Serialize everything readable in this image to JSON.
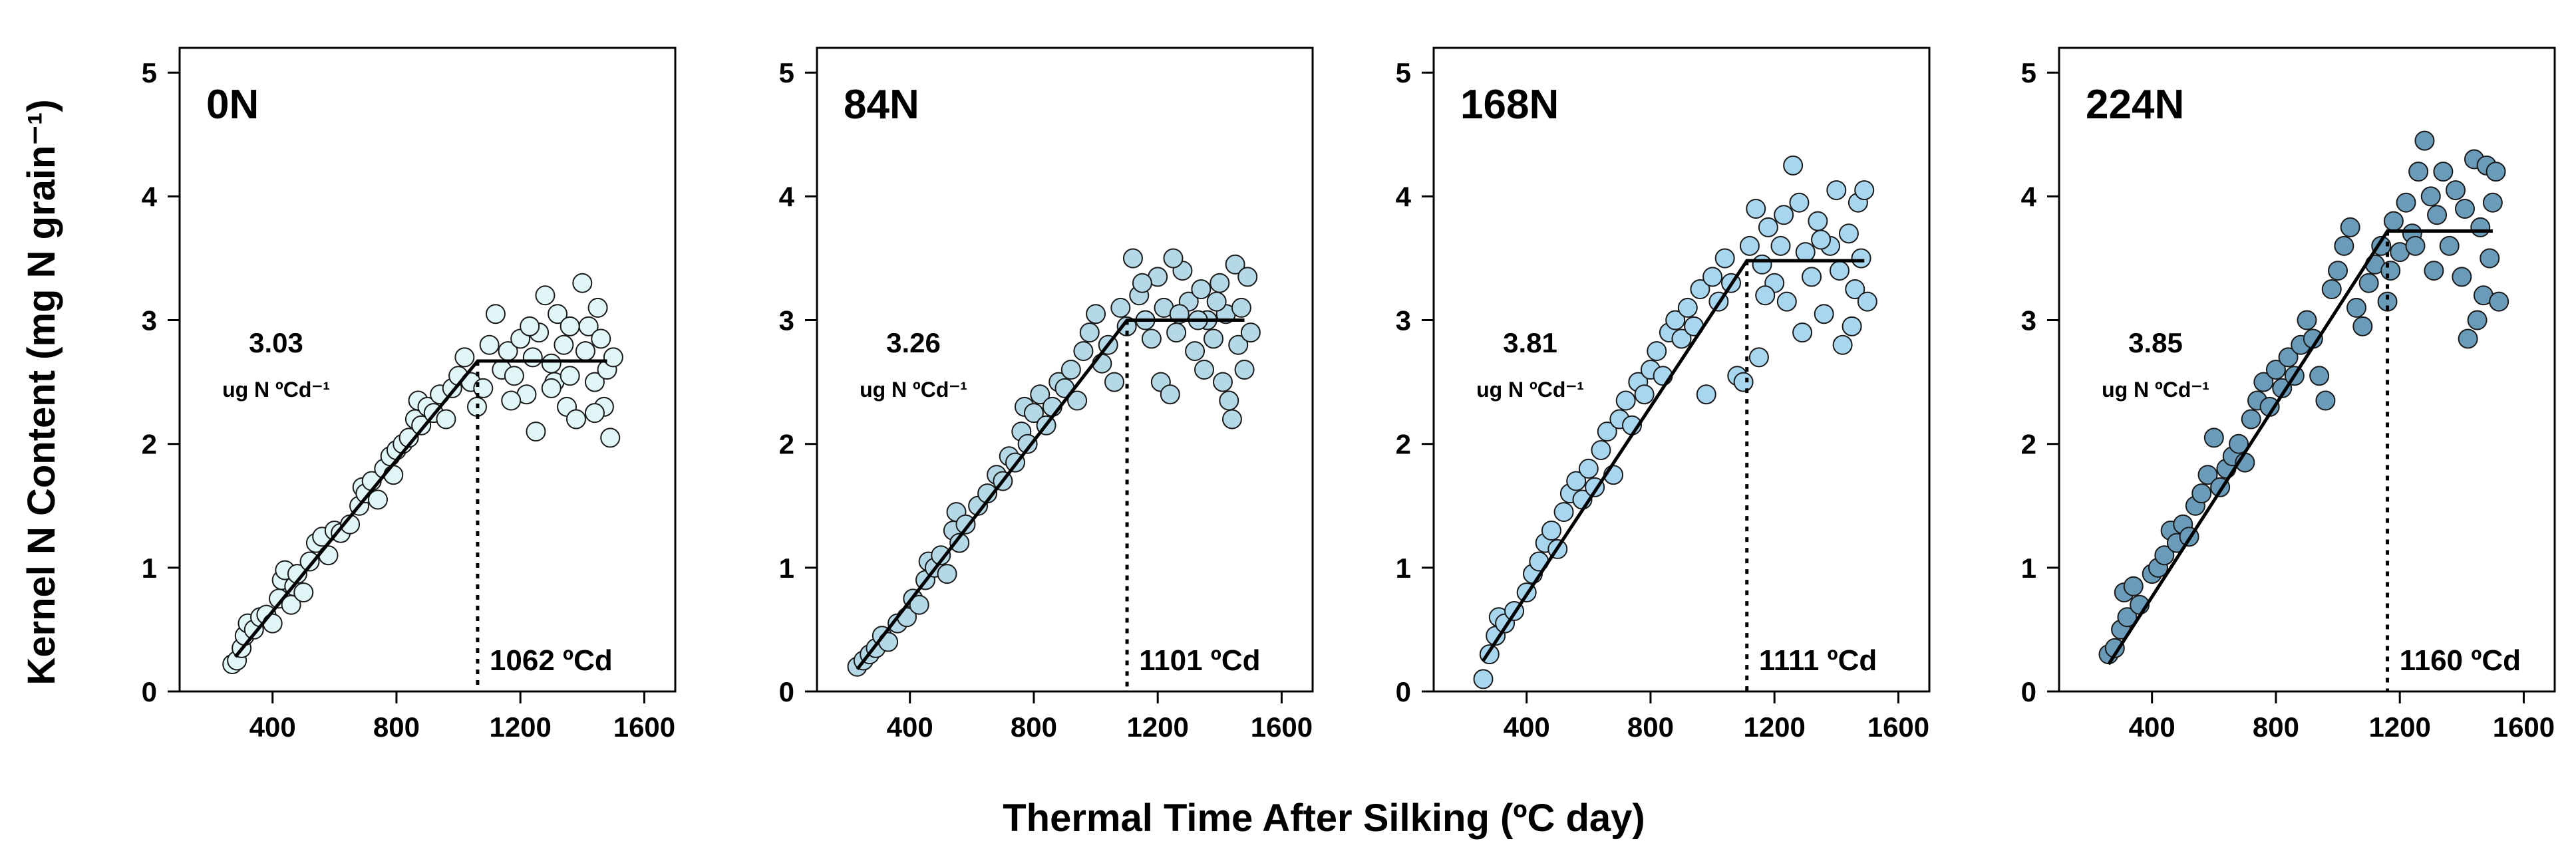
{
  "chart_data": {
    "type": "scatter",
    "xlabel": "Thermal Time After Silking (ºC day)",
    "ylabel": "Kernel N Content (mg N grain⁻¹)",
    "xlim": [
      100,
      1700
    ],
    "ylim": [
      0,
      5.2
    ],
    "xticks": [
      "400",
      "800",
      "1200",
      "1600"
    ],
    "yticks": [
      "0",
      "1",
      "2",
      "3",
      "4",
      "5"
    ],
    "panels": [
      {
        "title": "0N",
        "slope_value": "3.03",
        "slope_unit": "ug N ºCd⁻¹",
        "breakpoint_label": "1062 ºCd",
        "breakpoint": 1062,
        "fit": {
          "x0": 280,
          "y0": 0.28,
          "plateau": 2.67,
          "x_end": 1480
        },
        "point_color": "#e0f6f7",
        "points": [
          [
            270,
            0.22
          ],
          [
            285,
            0.25
          ],
          [
            300,
            0.35
          ],
          [
            310,
            0.45
          ],
          [
            320,
            0.55
          ],
          [
            340,
            0.5
          ],
          [
            360,
            0.6
          ],
          [
            380,
            0.62
          ],
          [
            400,
            0.55
          ],
          [
            420,
            0.75
          ],
          [
            430,
            0.9
          ],
          [
            440,
            0.98
          ],
          [
            460,
            0.7
          ],
          [
            470,
            0.85
          ],
          [
            480,
            0.95
          ],
          [
            500,
            0.8
          ],
          [
            520,
            1.05
          ],
          [
            540,
            1.2
          ],
          [
            560,
            1.25
          ],
          [
            580,
            1.1
          ],
          [
            600,
            1.3
          ],
          [
            620,
            1.28
          ],
          [
            650,
            1.35
          ],
          [
            680,
            1.5
          ],
          [
            690,
            1.65
          ],
          [
            700,
            1.6
          ],
          [
            720,
            1.7
          ],
          [
            740,
            1.55
          ],
          [
            760,
            1.8
          ],
          [
            780,
            1.9
          ],
          [
            790,
            1.75
          ],
          [
            800,
            1.95
          ],
          [
            820,
            2.0
          ],
          [
            840,
            2.05
          ],
          [
            860,
            2.2
          ],
          [
            870,
            2.35
          ],
          [
            880,
            2.15
          ],
          [
            900,
            2.3
          ],
          [
            920,
            2.25
          ],
          [
            940,
            2.4
          ],
          [
            960,
            2.2
          ],
          [
            980,
            2.45
          ],
          [
            1000,
            2.55
          ],
          [
            1020,
            2.7
          ],
          [
            1040,
            2.5
          ],
          [
            1060,
            2.3
          ],
          [
            1080,
            2.45
          ],
          [
            1100,
            2.8
          ],
          [
            1120,
            3.05
          ],
          [
            1140,
            2.6
          ],
          [
            1160,
            2.75
          ],
          [
            1180,
            2.55
          ],
          [
            1200,
            2.85
          ],
          [
            1220,
            2.4
          ],
          [
            1240,
            2.7
          ],
          [
            1250,
            2.1
          ],
          [
            1260,
            2.9
          ],
          [
            1280,
            3.2
          ],
          [
            1300,
            2.65
          ],
          [
            1310,
            2.5
          ],
          [
            1320,
            3.05
          ],
          [
            1340,
            2.8
          ],
          [
            1350,
            2.3
          ],
          [
            1360,
            2.55
          ],
          [
            1380,
            2.2
          ],
          [
            1400,
            3.3
          ],
          [
            1410,
            2.75
          ],
          [
            1420,
            2.95
          ],
          [
            1440,
            2.5
          ],
          [
            1450,
            3.1
          ],
          [
            1460,
            2.85
          ],
          [
            1470,
            2.3
          ],
          [
            1480,
            2.6
          ],
          [
            1490,
            2.05
          ],
          [
            1500,
            2.7
          ],
          [
            1300,
            2.45
          ],
          [
            1230,
            2.95
          ],
          [
            1170,
            2.35
          ],
          [
            1440,
            2.25
          ],
          [
            1360,
            2.95
          ]
        ]
      },
      {
        "title": "84N",
        "slope_value": "3.26",
        "slope_unit": "ug N ºCd⁻¹",
        "breakpoint_label": "1101 ºCd",
        "breakpoint": 1101,
        "fit": {
          "x0": 230,
          "y0": 0.18,
          "plateau": 3.0,
          "x_end": 1480
        },
        "point_color": "#b5d8e6",
        "points": [
          [
            230,
            0.2
          ],
          [
            250,
            0.25
          ],
          [
            270,
            0.3
          ],
          [
            290,
            0.35
          ],
          [
            310,
            0.45
          ],
          [
            330,
            0.4
          ],
          [
            360,
            0.55
          ],
          [
            390,
            0.6
          ],
          [
            410,
            0.75
          ],
          [
            430,
            0.7
          ],
          [
            450,
            0.9
          ],
          [
            460,
            1.05
          ],
          [
            480,
            1.0
          ],
          [
            500,
            1.1
          ],
          [
            520,
            0.95
          ],
          [
            540,
            1.3
          ],
          [
            550,
            1.45
          ],
          [
            560,
            1.2
          ],
          [
            580,
            1.35
          ],
          [
            620,
            1.5
          ],
          [
            650,
            1.6
          ],
          [
            680,
            1.75
          ],
          [
            700,
            1.7
          ],
          [
            720,
            1.9
          ],
          [
            740,
            1.85
          ],
          [
            760,
            2.1
          ],
          [
            770,
            2.3
          ],
          [
            780,
            2.0
          ],
          [
            800,
            2.25
          ],
          [
            820,
            2.4
          ],
          [
            840,
            2.15
          ],
          [
            860,
            2.3
          ],
          [
            880,
            2.5
          ],
          [
            900,
            2.45
          ],
          [
            920,
            2.6
          ],
          [
            940,
            2.35
          ],
          [
            960,
            2.75
          ],
          [
            980,
            2.9
          ],
          [
            1000,
            3.05
          ],
          [
            1020,
            2.65
          ],
          [
            1040,
            2.8
          ],
          [
            1060,
            2.5
          ],
          [
            1080,
            3.1
          ],
          [
            1100,
            2.95
          ],
          [
            1120,
            3.5
          ],
          [
            1140,
            3.2
          ],
          [
            1160,
            3.0
          ],
          [
            1180,
            2.85
          ],
          [
            1200,
            3.35
          ],
          [
            1210,
            2.5
          ],
          [
            1220,
            3.1
          ],
          [
            1240,
            2.4
          ],
          [
            1260,
            2.9
          ],
          [
            1280,
            3.4
          ],
          [
            1300,
            3.15
          ],
          [
            1320,
            2.75
          ],
          [
            1340,
            3.25
          ],
          [
            1350,
            2.6
          ],
          [
            1360,
            3.0
          ],
          [
            1380,
            2.85
          ],
          [
            1400,
            3.3
          ],
          [
            1410,
            2.5
          ],
          [
            1420,
            3.05
          ],
          [
            1440,
            2.2
          ],
          [
            1450,
            3.45
          ],
          [
            1460,
            2.8
          ],
          [
            1470,
            3.1
          ],
          [
            1480,
            2.6
          ],
          [
            1490,
            3.35
          ],
          [
            1500,
            2.9
          ],
          [
            1250,
            3.5
          ],
          [
            1150,
            3.3
          ],
          [
            1330,
            3.0
          ],
          [
            1430,
            2.35
          ],
          [
            1390,
            3.15
          ],
          [
            1270,
            3.05
          ]
        ]
      },
      {
        "title": "168N",
        "slope_value": "3.81",
        "slope_unit": "ug N ºCd⁻¹",
        "breakpoint_label": "1111 ºCd",
        "breakpoint": 1111,
        "fit": {
          "x0": 260,
          "y0": 0.25,
          "plateau": 3.48,
          "x_end": 1490
        },
        "point_color": "#a9d6ef",
        "points": [
          [
            260,
            0.1
          ],
          [
            280,
            0.3
          ],
          [
            300,
            0.45
          ],
          [
            310,
            0.6
          ],
          [
            330,
            0.55
          ],
          [
            360,
            0.65
          ],
          [
            400,
            0.8
          ],
          [
            420,
            0.95
          ],
          [
            440,
            1.05
          ],
          [
            460,
            1.2
          ],
          [
            480,
            1.3
          ],
          [
            500,
            1.15
          ],
          [
            520,
            1.45
          ],
          [
            540,
            1.6
          ],
          [
            560,
            1.7
          ],
          [
            580,
            1.55
          ],
          [
            600,
            1.8
          ],
          [
            620,
            1.65
          ],
          [
            640,
            1.95
          ],
          [
            660,
            2.1
          ],
          [
            680,
            1.75
          ],
          [
            700,
            2.2
          ],
          [
            720,
            2.35
          ],
          [
            740,
            2.15
          ],
          [
            760,
            2.5
          ],
          [
            780,
            2.4
          ],
          [
            800,
            2.6
          ],
          [
            820,
            2.75
          ],
          [
            840,
            2.55
          ],
          [
            860,
            2.9
          ],
          [
            880,
            3.0
          ],
          [
            900,
            2.85
          ],
          [
            920,
            3.1
          ],
          [
            940,
            2.95
          ],
          [
            960,
            3.25
          ],
          [
            980,
            2.4
          ],
          [
            1000,
            3.35
          ],
          [
            1020,
            3.15
          ],
          [
            1040,
            3.5
          ],
          [
            1060,
            3.3
          ],
          [
            1080,
            2.55
          ],
          [
            1100,
            2.5
          ],
          [
            1120,
            3.6
          ],
          [
            1140,
            3.9
          ],
          [
            1160,
            3.45
          ],
          [
            1180,
            3.75
          ],
          [
            1200,
            3.3
          ],
          [
            1220,
            3.6
          ],
          [
            1240,
            3.15
          ],
          [
            1260,
            4.25
          ],
          [
            1280,
            3.95
          ],
          [
            1300,
            3.55
          ],
          [
            1320,
            3.35
          ],
          [
            1340,
            3.8
          ],
          [
            1360,
            3.05
          ],
          [
            1380,
            3.6
          ],
          [
            1400,
            4.05
          ],
          [
            1420,
            2.8
          ],
          [
            1440,
            3.7
          ],
          [
            1460,
            3.25
          ],
          [
            1470,
            3.95
          ],
          [
            1480,
            3.5
          ],
          [
            1490,
            4.05
          ],
          [
            1500,
            3.15
          ],
          [
            1290,
            2.9
          ],
          [
            1230,
            3.85
          ],
          [
            1170,
            3.2
          ],
          [
            1410,
            3.4
          ],
          [
            1450,
            2.95
          ],
          [
            1350,
            3.65
          ],
          [
            1150,
            2.7
          ]
        ]
      },
      {
        "title": "224N",
        "slope_value": "3.85",
        "slope_unit": "ug N ºCd⁻¹",
        "breakpoint_label": "1160 ºCd",
        "breakpoint": 1160,
        "fit": {
          "x0": 260,
          "y0": 0.22,
          "plateau": 3.72,
          "x_end": 1500
        },
        "point_color": "#6a9cba",
        "points": [
          [
            260,
            0.3
          ],
          [
            280,
            0.35
          ],
          [
            300,
            0.5
          ],
          [
            310,
            0.8
          ],
          [
            320,
            0.6
          ],
          [
            340,
            0.85
          ],
          [
            360,
            0.7
          ],
          [
            400,
            0.95
          ],
          [
            420,
            1.0
          ],
          [
            440,
            1.1
          ],
          [
            460,
            1.3
          ],
          [
            480,
            1.2
          ],
          [
            500,
            1.35
          ],
          [
            520,
            1.25
          ],
          [
            540,
            1.5
          ],
          [
            560,
            1.6
          ],
          [
            580,
            1.75
          ],
          [
            600,
            2.05
          ],
          [
            620,
            1.65
          ],
          [
            640,
            1.8
          ],
          [
            660,
            1.9
          ],
          [
            680,
            2.0
          ],
          [
            700,
            1.85
          ],
          [
            720,
            2.2
          ],
          [
            740,
            2.35
          ],
          [
            760,
            2.5
          ],
          [
            780,
            2.3
          ],
          [
            800,
            2.6
          ],
          [
            820,
            2.45
          ],
          [
            840,
            2.7
          ],
          [
            860,
            2.55
          ],
          [
            880,
            2.8
          ],
          [
            900,
            3.0
          ],
          [
            920,
            2.85
          ],
          [
            940,
            2.55
          ],
          [
            960,
            2.35
          ],
          [
            980,
            3.25
          ],
          [
            1000,
            3.4
          ],
          [
            1020,
            3.6
          ],
          [
            1040,
            3.75
          ],
          [
            1060,
            3.1
          ],
          [
            1080,
            2.95
          ],
          [
            1100,
            3.3
          ],
          [
            1120,
            3.45
          ],
          [
            1140,
            3.6
          ],
          [
            1160,
            3.15
          ],
          [
            1180,
            3.8
          ],
          [
            1200,
            3.55
          ],
          [
            1220,
            3.95
          ],
          [
            1240,
            3.7
          ],
          [
            1260,
            4.2
          ],
          [
            1280,
            4.45
          ],
          [
            1300,
            4.0
          ],
          [
            1320,
            3.85
          ],
          [
            1340,
            4.2
          ],
          [
            1360,
            3.6
          ],
          [
            1380,
            4.05
          ],
          [
            1400,
            3.35
          ],
          [
            1420,
            2.85
          ],
          [
            1440,
            4.3
          ],
          [
            1460,
            3.75
          ],
          [
            1470,
            3.2
          ],
          [
            1480,
            4.25
          ],
          [
            1490,
            3.5
          ],
          [
            1500,
            3.95
          ],
          [
            1510,
            4.2
          ],
          [
            1520,
            3.15
          ],
          [
            1450,
            3.0
          ],
          [
            1310,
            3.4
          ],
          [
            1250,
            3.6
          ],
          [
            1410,
            3.9
          ],
          [
            1170,
            3.4
          ]
        ]
      }
    ]
  }
}
